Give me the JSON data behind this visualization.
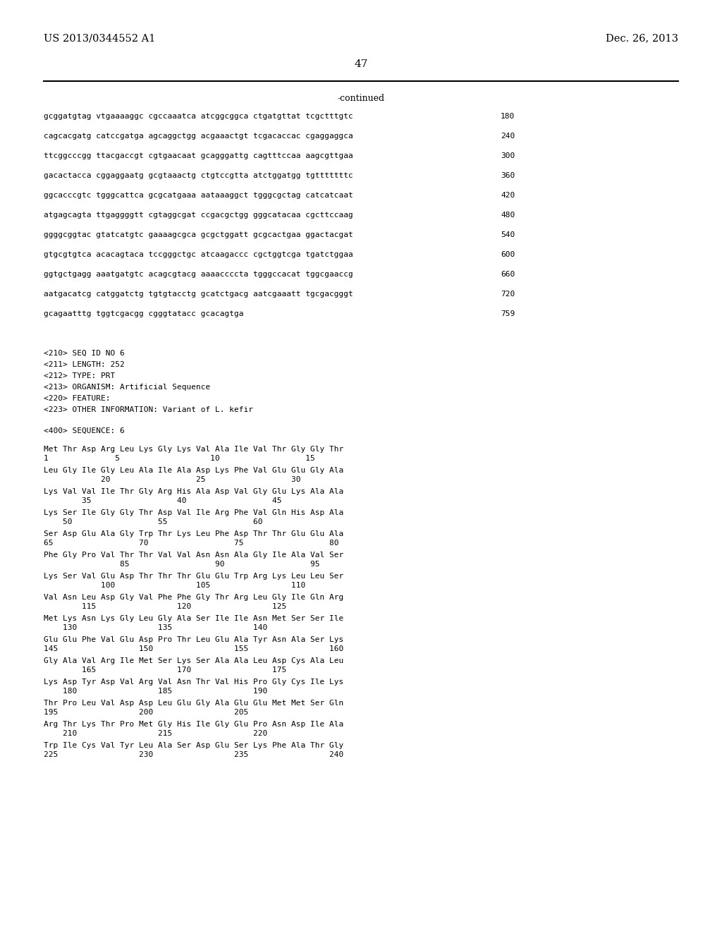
{
  "header_left": "US 2013/0344552 A1",
  "header_right": "Dec. 26, 2013",
  "page_number": "47",
  "continued_label": "-continued",
  "background_color": "#ffffff",
  "text_color": "#000000",
  "line_color": "#000000",
  "font_size_header": 10.5,
  "font_size_body": 8.0,
  "font_size_page": 11,
  "sequence_lines": [
    [
      "gcggatgtag vtgaaaaggc cgccaaatca atcggcggca ctgatgttat tcgctttgtc",
      "180"
    ],
    [
      "cagcacgatg catccgatga agcaggctgg acgaaactgt tcgacaccac cgaggaggca",
      "240"
    ],
    [
      "ttcggcccgg ttacgaccgt cgtgaacaat gcagggattg cagtttccaa aagcgttgaa",
      "300"
    ],
    [
      "gacactacca cggaggaatg gcgtaaactg ctgtccgtta atctggatgg tgtttttttc",
      "360"
    ],
    [
      "ggcacccgtc tgggcattca gcgcatgaaa aataaaggct tgggcgctag catcatcaat",
      "420"
    ],
    [
      "atgagcagta ttgaggggtt cgtaggcgat ccgacgctgg gggcatacaa cgcttccaag",
      "480"
    ],
    [
      "ggggcggtac gtatcatgtc gaaaagcgca gcgctggatt gcgcactgaa ggactacgat",
      "540"
    ],
    [
      "gtgcgtgtca acacagtaca tccgggctgc atcaagaccc cgctggtcga tgatctggaa",
      "600"
    ],
    [
      "ggtgctgagg aaatgatgtc acagcgtacg aaaaccccta tgggccacat tggcgaaccg",
      "660"
    ],
    [
      "aatgacatcg catggatctg tgtgtacctg gcatctgacg aatcgaaatt tgcgacgggt",
      "720"
    ],
    [
      "gcagaatttg tggtcgacgg cgggtatacc gcacagtga",
      "759"
    ]
  ],
  "metadata_lines": [
    "<210> SEQ ID NO 6",
    "<211> LENGTH: 252",
    "<212> TYPE: PRT",
    "<213> ORGANISM: Artificial Sequence",
    "<220> FEATURE:",
    "<223> OTHER INFORMATION: Variant of L. kefir"
  ],
  "sequence_label": "<400> SEQUENCE: 6",
  "protein_lines": [
    {
      "seq": "Met Thr Asp Arg Leu Lys Gly Lys Val Ala Ile Val Thr Gly Gly Thr",
      "nums": "1              5                   10                  15"
    },
    {
      "seq": "Leu Gly Ile Gly Leu Ala Ile Ala Asp Lys Phe Val Glu Glu Gly Ala",
      "nums": "            20                  25                  30"
    },
    {
      "seq": "Lys Val Val Ile Thr Gly Arg His Ala Asp Val Gly Glu Lys Ala Ala",
      "nums": "        35                  40                  45"
    },
    {
      "seq": "Lys Ser Ile Gly Gly Thr Asp Val Ile Arg Phe Val Gln His Asp Ala",
      "nums": "    50                  55                  60"
    },
    {
      "seq": "Ser Asp Glu Ala Gly Trp Thr Lys Leu Phe Asp Thr Thr Glu Glu Ala",
      "nums": "65                  70                  75                  80"
    },
    {
      "seq": "Phe Gly Pro Val Thr Thr Val Val Asn Asn Ala Gly Ile Ala Val Ser",
      "nums": "                85                  90                  95"
    },
    {
      "seq": "Lys Ser Val Glu Asp Thr Thr Thr Glu Glu Trp Arg Lys Leu Leu Ser",
      "nums": "            100                 105                 110"
    },
    {
      "seq": "Val Asn Leu Asp Gly Val Phe Phe Gly Thr Arg Leu Gly Ile Gln Arg",
      "nums": "        115                 120                 125"
    },
    {
      "seq": "Met Lys Asn Lys Gly Leu Gly Ala Ser Ile Ile Asn Met Ser Ser Ile",
      "nums": "    130                 135                 140"
    },
    {
      "seq": "Glu Glu Phe Val Glu Asp Pro Thr Leu Glu Ala Tyr Asn Ala Ser Lys",
      "nums": "145                 150                 155                 160"
    },
    {
      "seq": "Gly Ala Val Arg Ile Met Ser Lys Ser Ala Ala Leu Asp Cys Ala Leu",
      "nums": "        165                 170                 175"
    },
    {
      "seq": "Lys Asp Tyr Asp Val Arg Val Asn Thr Val His Pro Gly Cys Ile Lys",
      "nums": "    180                 185                 190"
    },
    {
      "seq": "Thr Pro Leu Val Asp Asp Leu Glu Gly Ala Glu Glu Met Met Ser Gln",
      "nums": "195                 200                 205"
    },
    {
      "seq": "Arg Thr Lys Thr Pro Met Gly His Ile Gly Glu Pro Asn Asp Ile Ala",
      "nums": "    210                 215                 220"
    },
    {
      "seq": "Trp Ile Cys Val Tyr Leu Ala Ser Asp Glu Ser Lys Phe Ala Thr Gly",
      "nums": "225                 230                 235                 240"
    }
  ]
}
